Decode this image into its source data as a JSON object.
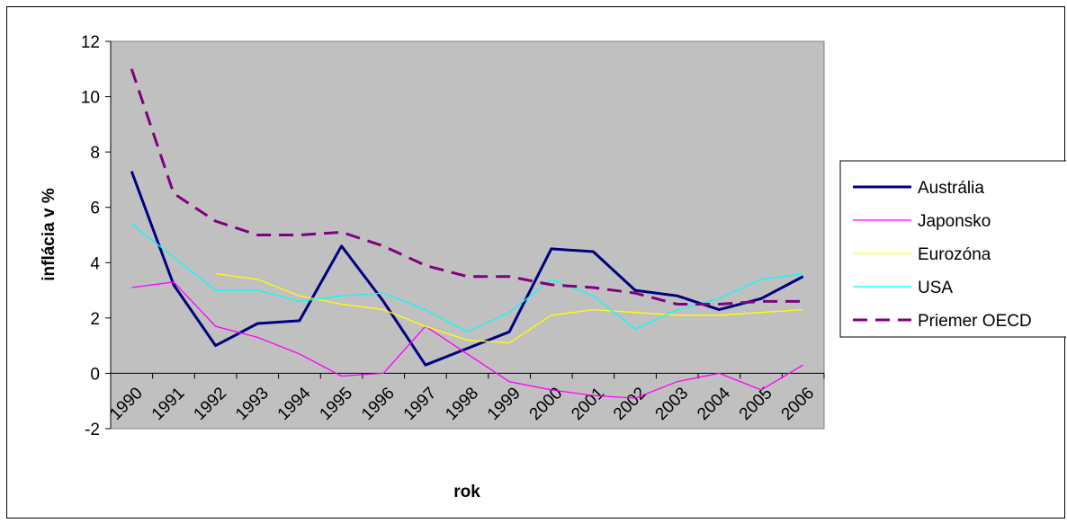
{
  "chart_data": {
    "type": "line",
    "xlabel": "rok",
    "ylabel": "inflácia v %",
    "ylim": [
      -2,
      12
    ],
    "yticks": [
      -2,
      0,
      2,
      4,
      6,
      8,
      10,
      12
    ],
    "categories": [
      "1990",
      "1991",
      "1992",
      "1993",
      "1994",
      "1995",
      "1996",
      "1997",
      "1998",
      "1999",
      "2000",
      "2001",
      "2002",
      "2003",
      "2004",
      "2005",
      "2006"
    ],
    "grid": false,
    "plot_background": "#c0c0c0",
    "legend_position": "right",
    "series": [
      {
        "name": "Austrália",
        "color": "#000080",
        "dash": "solid",
        "width": "thick",
        "values": [
          7.3,
          3.2,
          1.0,
          1.8,
          1.9,
          4.6,
          2.6,
          0.3,
          0.9,
          1.5,
          4.5,
          4.4,
          3.0,
          2.8,
          2.3,
          2.7,
          3.5
        ]
      },
      {
        "name": "Japonsko",
        "color": "#ff00ff",
        "dash": "solid",
        "width": "thin",
        "values": [
          3.1,
          3.3,
          1.7,
          1.3,
          0.7,
          -0.1,
          0.0,
          1.7,
          0.7,
          -0.3,
          -0.6,
          -0.8,
          -0.9,
          -0.3,
          0.0,
          -0.6,
          0.3
        ]
      },
      {
        "name": "Eurozóna",
        "color": "#ffff00",
        "dash": "solid",
        "width": "thin",
        "values": [
          null,
          null,
          3.6,
          3.4,
          2.8,
          2.5,
          2.3,
          1.7,
          1.2,
          1.1,
          2.1,
          2.3,
          2.2,
          2.1,
          2.1,
          2.2,
          2.3
        ]
      },
      {
        "name": "USA",
        "color": "#00ffff",
        "dash": "solid",
        "width": "thin",
        "values": [
          5.4,
          4.2,
          3.0,
          3.0,
          2.6,
          2.8,
          2.9,
          2.3,
          1.5,
          2.2,
          3.4,
          2.8,
          1.6,
          2.3,
          2.7,
          3.4,
          3.6
        ]
      },
      {
        "name": "Priemer OECD",
        "color": "#800080",
        "dash": "dashed",
        "width": "thick",
        "values": [
          11.0,
          6.5,
          5.5,
          5.0,
          5.0,
          5.1,
          4.6,
          3.9,
          3.5,
          3.5,
          3.2,
          3.1,
          2.9,
          2.5,
          2.5,
          2.6,
          2.6
        ]
      }
    ]
  }
}
